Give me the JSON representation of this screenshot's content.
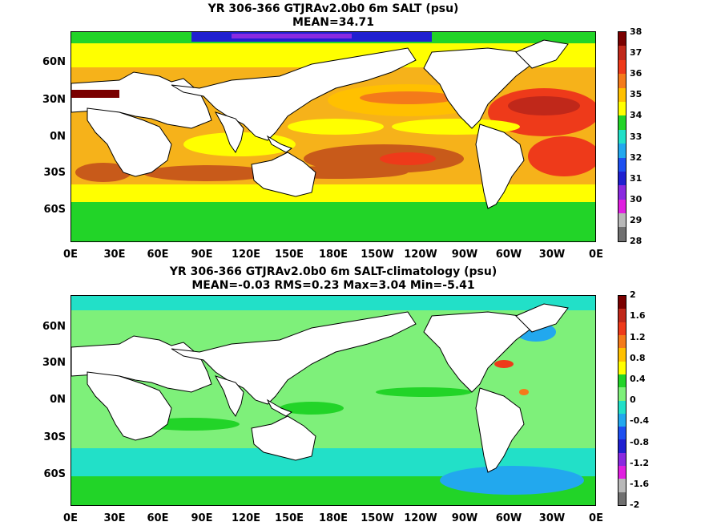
{
  "panels": [
    {
      "title_line1": "YR 306-366 GTJRAv2.0b0 6m SALT (psu)",
      "title_line2": "MEAN=34.71",
      "lat_labels": [
        "60N",
        "30N",
        "0N",
        "30S",
        "60S"
      ],
      "lon_labels": [
        "0E",
        "30E",
        "60E",
        "90E",
        "120E",
        "150E",
        "180E",
        "150W",
        "120W",
        "90W",
        "60W",
        "30W",
        "0E"
      ],
      "colorbar_labels": [
        "38",
        "37",
        "36",
        "35",
        "34",
        "33",
        "32",
        "31",
        "30",
        "29",
        "28"
      ],
      "colorbar_colors": [
        "#7a0000",
        "#c0281a",
        "#ee3a1a",
        "#f47a1a",
        "#ffc000",
        "#ffff00",
        "#22d428",
        "#22e0c8",
        "#22a8ee",
        "#1e50f0",
        "#2020d0",
        "#8a2ae0",
        "#e020e0",
        "#b8b8b8",
        "#707070"
      ],
      "ocean_color": "#f6b21a"
    },
    {
      "title_line1": "YR 306-366 GTJRAv2.0b0 6m SALT-climatology (psu)",
      "title_line2": "MEAN=-0.03   RMS=0.23   Max=3.04   Min=-5.41",
      "lat_labels": [
        "60N",
        "30N",
        "0N",
        "30S",
        "60S"
      ],
      "lon_labels": [
        "0E",
        "30E",
        "60E",
        "90E",
        "120E",
        "150E",
        "180E",
        "150W",
        "120W",
        "90W",
        "60W",
        "30W",
        "0E"
      ],
      "colorbar_labels": [
        "2",
        "1.6",
        "1.2",
        "0.8",
        "0.4",
        "0",
        "-0.4",
        "-0.8",
        "-1.2",
        "-1.6",
        "-2"
      ],
      "colorbar_colors": [
        "#7a0000",
        "#c0281a",
        "#ee3a1a",
        "#f47a1a",
        "#ffc000",
        "#ffff00",
        "#22d428",
        "#7ef07a",
        "#22e0c8",
        "#22a8ee",
        "#1e50f0",
        "#2020d0",
        "#8a2ae0",
        "#e020e0",
        "#b8b8b8",
        "#707070"
      ],
      "ocean_color": "#7ef07a"
    }
  ]
}
